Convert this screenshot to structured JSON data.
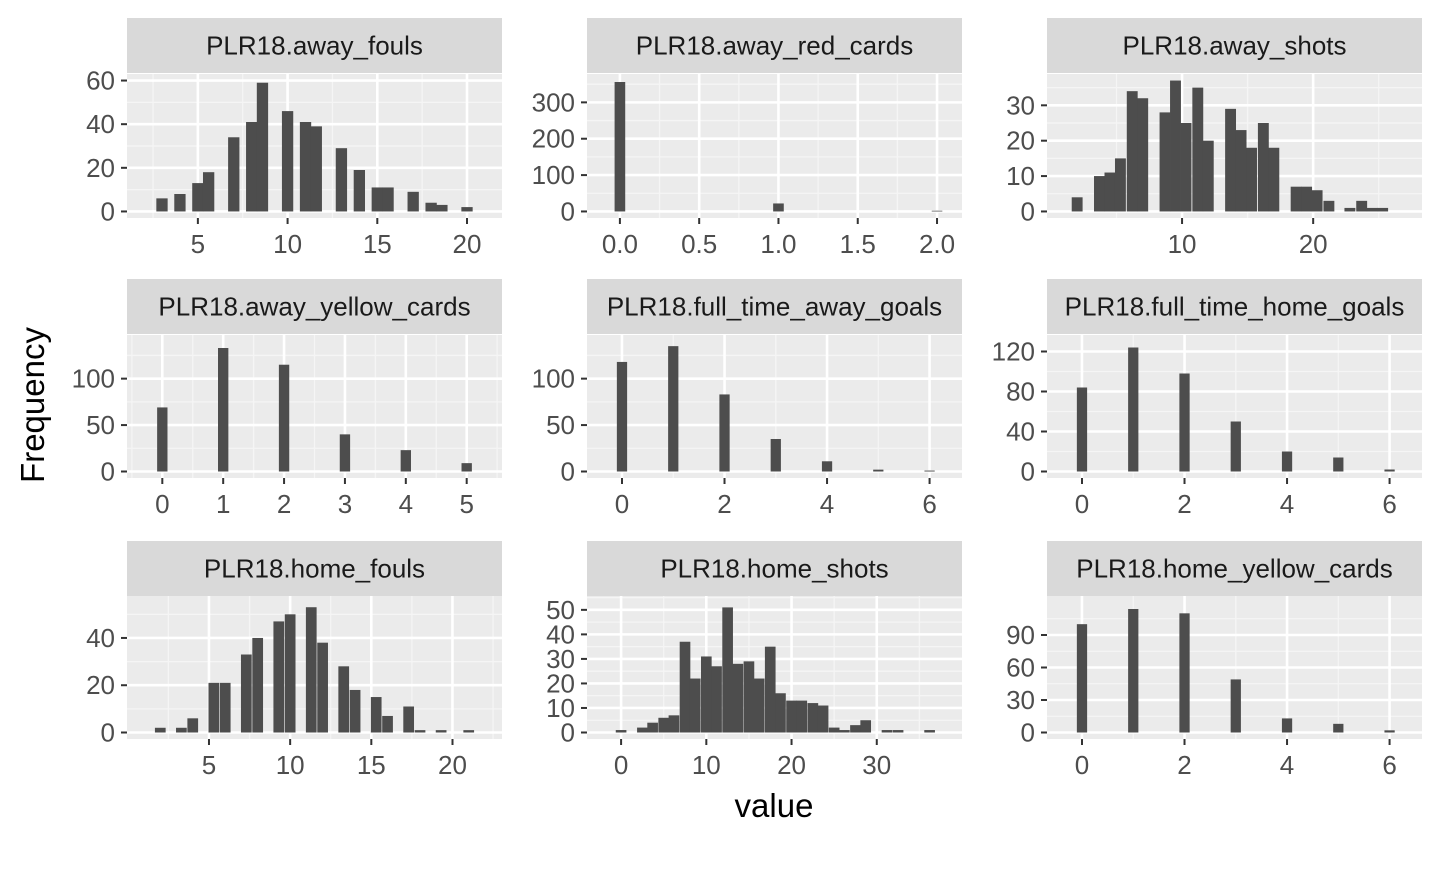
{
  "chart_data": {
    "type": "bar",
    "xlabel": "value",
    "ylabel": "Frequency",
    "panels": [
      {
        "strip": "PLR18.away_fouls",
        "xlim": [
          2,
          21
        ],
        "ylim": [
          0,
          60
        ],
        "xticks": [
          5,
          10,
          15,
          20
        ],
        "yticks": [
          0,
          20,
          40,
          60
        ],
        "bin_width": 0.63,
        "bins": [
          {
            "x": 3,
            "y": 6
          },
          {
            "x": 4,
            "y": 8
          },
          {
            "x": 5,
            "y": 13
          },
          {
            "x": 5.6,
            "y": 18
          },
          {
            "x": 7,
            "y": 34
          },
          {
            "x": 8,
            "y": 41
          },
          {
            "x": 8.6,
            "y": 59
          },
          {
            "x": 10,
            "y": 46
          },
          {
            "x": 11,
            "y": 41
          },
          {
            "x": 11.6,
            "y": 39
          },
          {
            "x": 13,
            "y": 29
          },
          {
            "x": 14,
            "y": 19
          },
          {
            "x": 15,
            "y": 11
          },
          {
            "x": 15.6,
            "y": 11
          },
          {
            "x": 17,
            "y": 9
          },
          {
            "x": 18,
            "y": 4
          },
          {
            "x": 18.6,
            "y": 3
          },
          {
            "x": 20,
            "y": 2
          }
        ]
      },
      {
        "strip": "PLR18.away_red_cards",
        "xlim": [
          -0.1,
          2.05
        ],
        "ylim": [
          0,
          360
        ],
        "xticks": [
          0.0,
          0.5,
          1.0,
          1.5,
          2.0
        ],
        "xtick_labels": [
          "0.0",
          "0.5",
          "1.0",
          "1.5",
          "2.0"
        ],
        "yticks": [
          0,
          100,
          200,
          300
        ],
        "bin_width": 0.067,
        "bins": [
          {
            "x": 0,
            "y": 356
          },
          {
            "x": 1,
            "y": 22
          },
          {
            "x": 2,
            "y": 2
          }
        ]
      },
      {
        "strip": "PLR18.away_shots",
        "xlim": [
          1,
          27
        ],
        "ylim": [
          0,
          37
        ],
        "xticks": [
          10,
          20
        ],
        "yticks": [
          0,
          10,
          20,
          30
        ],
        "bin_width": 0.83,
        "bins": [
          {
            "x": 2,
            "y": 4
          },
          {
            "x": 3.7,
            "y": 10
          },
          {
            "x": 4.5,
            "y": 11
          },
          {
            "x": 5.3,
            "y": 15
          },
          {
            "x": 6.2,
            "y": 34
          },
          {
            "x": 7,
            "y": 32
          },
          {
            "x": 8.7,
            "y": 28
          },
          {
            "x": 9.5,
            "y": 37
          },
          {
            "x": 10.3,
            "y": 25
          },
          {
            "x": 11.2,
            "y": 35
          },
          {
            "x": 12,
            "y": 20
          },
          {
            "x": 13.7,
            "y": 29
          },
          {
            "x": 14.5,
            "y": 23
          },
          {
            "x": 15.3,
            "y": 18
          },
          {
            "x": 16.2,
            "y": 25
          },
          {
            "x": 17,
            "y": 18
          },
          {
            "x": 18.7,
            "y": 7
          },
          {
            "x": 19.5,
            "y": 7
          },
          {
            "x": 20.3,
            "y": 6
          },
          {
            "x": 21.2,
            "y": 3
          },
          {
            "x": 22.8,
            "y": 1
          },
          {
            "x": 23.7,
            "y": 3
          },
          {
            "x": 24.5,
            "y": 1
          },
          {
            "x": 25.3,
            "y": 1
          }
        ]
      },
      {
        "strip": "PLR18.away_yellow_cards",
        "xlim": [
          -0.3,
          5.3
        ],
        "ylim": [
          0,
          140
        ],
        "xticks": [
          0,
          1,
          2,
          3,
          4,
          5
        ],
        "yticks": [
          0,
          50,
          100
        ],
        "bin_width": 0.17,
        "bins": [
          {
            "x": 0,
            "y": 69
          },
          {
            "x": 1,
            "y": 133
          },
          {
            "x": 2,
            "y": 115
          },
          {
            "x": 3,
            "y": 40
          },
          {
            "x": 4,
            "y": 23
          },
          {
            "x": 5,
            "y": 9
          }
        ]
      },
      {
        "strip": "PLR18.full_time_away_goals",
        "xlim": [
          -0.35,
          6.3
        ],
        "ylim": [
          0,
          140
        ],
        "xticks": [
          0,
          2,
          4,
          6
        ],
        "yticks": [
          0,
          50,
          100
        ],
        "bin_width": 0.2,
        "bins": [
          {
            "x": 0,
            "y": 118
          },
          {
            "x": 1,
            "y": 135
          },
          {
            "x": 2,
            "y": 83
          },
          {
            "x": 3,
            "y": 35
          },
          {
            "x": 4,
            "y": 11
          },
          {
            "x": 5,
            "y": 2
          },
          {
            "x": 6,
            "y": 1
          }
        ]
      },
      {
        "strip": "PLR18.full_time_home_goals",
        "xlim": [
          -0.35,
          6.3
        ],
        "ylim": [
          0,
          130
        ],
        "xticks": [
          0,
          2,
          4,
          6
        ],
        "yticks": [
          0,
          40,
          80,
          120
        ],
        "bin_width": 0.2,
        "bins": [
          {
            "x": 0,
            "y": 84
          },
          {
            "x": 1,
            "y": 124
          },
          {
            "x": 2,
            "y": 98
          },
          {
            "x": 3,
            "y": 50
          },
          {
            "x": 4,
            "y": 20
          },
          {
            "x": 5,
            "y": 14
          },
          {
            "x": 6,
            "y": 2
          }
        ]
      },
      {
        "strip": "PLR18.home_fouls",
        "xlim": [
          1,
          22
        ],
        "ylim": [
          0,
          55
        ],
        "xticks": [
          5,
          10,
          15,
          20
        ],
        "yticks": [
          0,
          20,
          40
        ],
        "bin_width": 0.66,
        "bins": [
          {
            "x": 2,
            "y": 2
          },
          {
            "x": 3.3,
            "y": 2
          },
          {
            "x": 4,
            "y": 6
          },
          {
            "x": 5.3,
            "y": 21
          },
          {
            "x": 6,
            "y": 21
          },
          {
            "x": 7.3,
            "y": 33
          },
          {
            "x": 8,
            "y": 40
          },
          {
            "x": 9.3,
            "y": 47
          },
          {
            "x": 10,
            "y": 50
          },
          {
            "x": 11.3,
            "y": 53
          },
          {
            "x": 12,
            "y": 38
          },
          {
            "x": 13.3,
            "y": 28
          },
          {
            "x": 14,
            "y": 18
          },
          {
            "x": 15.3,
            "y": 15
          },
          {
            "x": 16,
            "y": 7
          },
          {
            "x": 17.3,
            "y": 11
          },
          {
            "x": 18,
            "y": 1
          },
          {
            "x": 19.3,
            "y": 1
          },
          {
            "x": 21,
            "y": 1
          }
        ]
      },
      {
        "strip": "PLR18.home_shots",
        "xlim": [
          -2,
          38
        ],
        "ylim": [
          0,
          53
        ],
        "xticks": [
          0,
          10,
          20,
          30
        ],
        "yticks": [
          0,
          10,
          20,
          30,
          40,
          50
        ],
        "bin_width": 1.25,
        "bins": [
          {
            "x": 0,
            "y": 1
          },
          {
            "x": 2.5,
            "y": 2
          },
          {
            "x": 3.7,
            "y": 4
          },
          {
            "x": 5,
            "y": 6
          },
          {
            "x": 6.2,
            "y": 7
          },
          {
            "x": 7.5,
            "y": 37
          },
          {
            "x": 8.7,
            "y": 22
          },
          {
            "x": 10,
            "y": 31
          },
          {
            "x": 11.2,
            "y": 27
          },
          {
            "x": 12.5,
            "y": 51
          },
          {
            "x": 13.7,
            "y": 28
          },
          {
            "x": 15,
            "y": 29
          },
          {
            "x": 16.2,
            "y": 22
          },
          {
            "x": 17.5,
            "y": 35
          },
          {
            "x": 18.7,
            "y": 16
          },
          {
            "x": 20,
            "y": 13
          },
          {
            "x": 21.2,
            "y": 13
          },
          {
            "x": 22.5,
            "y": 12
          },
          {
            "x": 23.7,
            "y": 11
          },
          {
            "x": 25,
            "y": 2
          },
          {
            "x": 26.2,
            "y": 1
          },
          {
            "x": 27.5,
            "y": 3
          },
          {
            "x": 28.7,
            "y": 5
          },
          {
            "x": 31.2,
            "y": 1
          },
          {
            "x": 32.5,
            "y": 1
          },
          {
            "x": 36.2,
            "y": 1
          }
        ]
      },
      {
        "strip": "PLR18.home_yellow_cards",
        "xlim": [
          -0.35,
          6.3
        ],
        "ylim": [
          0,
          120
        ],
        "xticks": [
          0,
          2,
          4,
          6
        ],
        "yticks": [
          0,
          30,
          60,
          90
        ],
        "bin_width": 0.2,
        "bins": [
          {
            "x": 0,
            "y": 100
          },
          {
            "x": 1,
            "y": 114
          },
          {
            "x": 2,
            "y": 110
          },
          {
            "x": 3,
            "y": 49
          },
          {
            "x": 4,
            "y": 13
          },
          {
            "x": 5,
            "y": 8
          },
          {
            "x": 6,
            "y": 2
          }
        ]
      }
    ]
  },
  "colors": {
    "panel_bg": "#EBEBEB",
    "strip_bg": "#D9D9D9",
    "grid_major": "#FFFFFF",
    "grid_minor": "#F5F5F5",
    "bar": "#4D4D4D",
    "tick_text": "#4D4D4D",
    "axis_title": "#000000",
    "strip_text": "#1A1A1A"
  }
}
